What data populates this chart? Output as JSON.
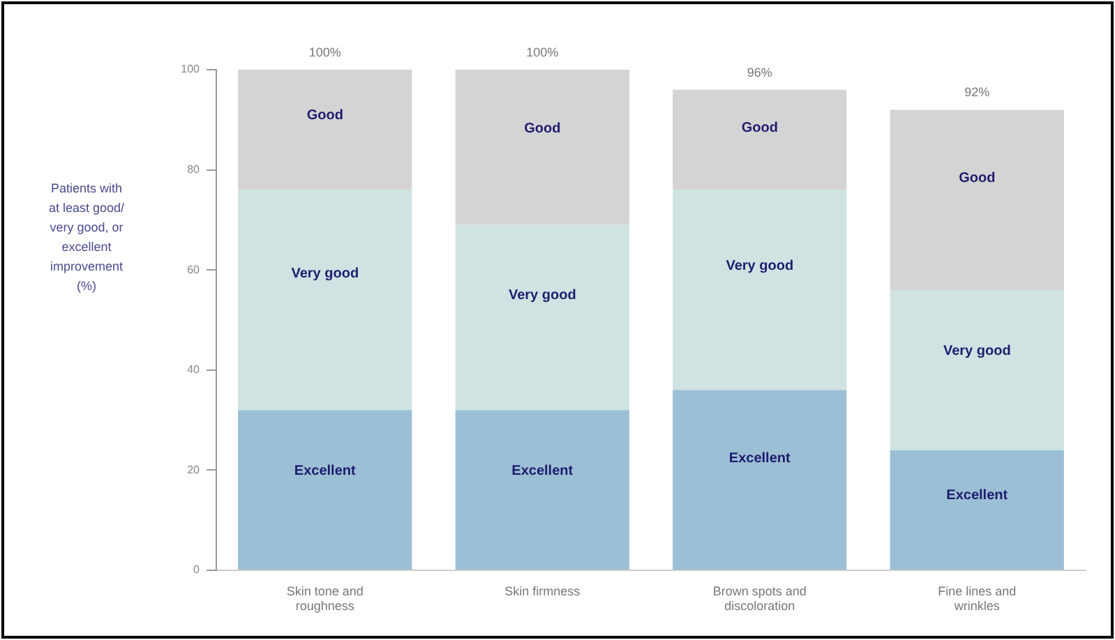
{
  "chart_data": {
    "type": "bar",
    "stacked": true,
    "ylabel": "Patients with at least good/ very good, or excellent improvement (%)",
    "categories": [
      "Skin tone and roughness",
      "Skin firmness",
      "Brown spots and discoloration",
      "Fine lines and wrinkles"
    ],
    "series": [
      {
        "name": "Excellent",
        "color": "#9bbfd4",
        "values": [
          32,
          32,
          36,
          24
        ]
      },
      {
        "name": "Very good",
        "color": "#cfe3e2",
        "values": [
          44,
          37,
          40,
          32
        ]
      },
      {
        "name": "Good",
        "color": "#d4d4d4",
        "values": [
          24,
          31,
          20,
          36
        ]
      }
    ],
    "ylim": [
      0,
      100
    ],
    "yticks": [
      0,
      20,
      40,
      60,
      80,
      100
    ],
    "totals": [
      "100%",
      "100%",
      "96%",
      "92%"
    ]
  }
}
